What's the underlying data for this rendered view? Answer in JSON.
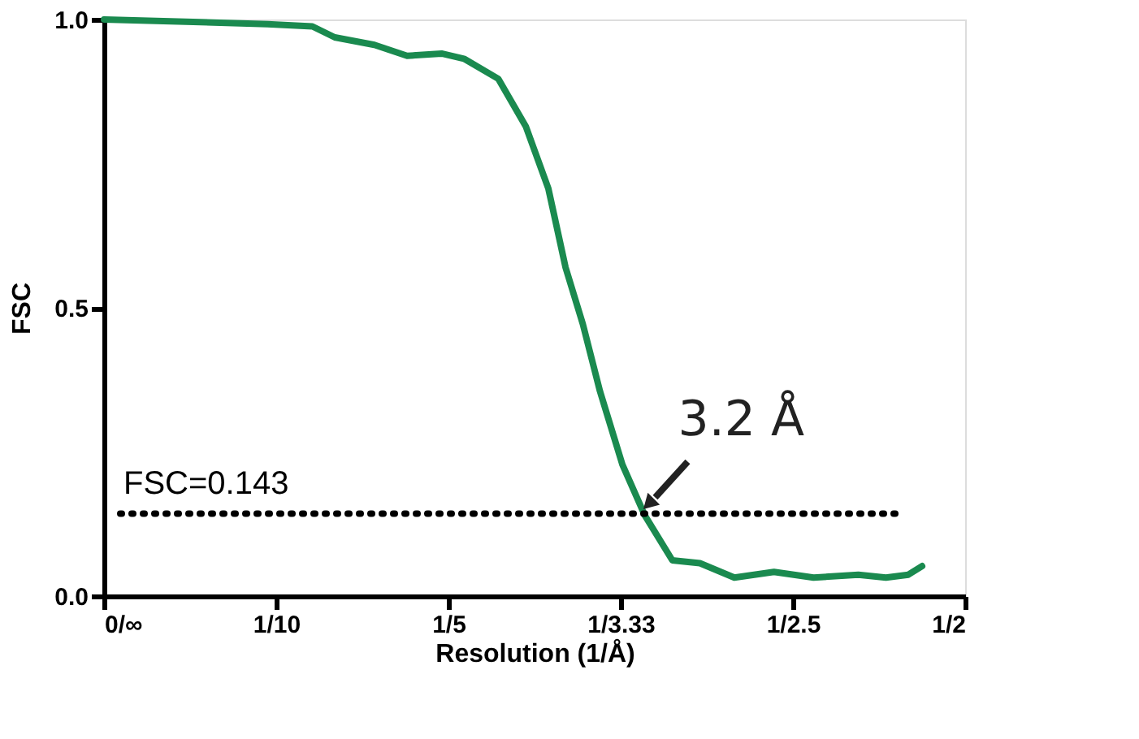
{
  "chart_data": {
    "type": "line",
    "xlabel": "Resolution (1/Å)",
    "ylabel": "FSC",
    "x": [
      0,
      0.095,
      0.121,
      0.134,
      0.157,
      0.176,
      0.196,
      0.209,
      0.229,
      0.245,
      0.258,
      0.268,
      0.278,
      0.288,
      0.301,
      0.314,
      0.33,
      0.346,
      0.366,
      0.389,
      0.412,
      0.438,
      0.454,
      0.467,
      0.475
    ],
    "series": [
      {
        "color": "#1a8a4f",
        "values": [
          1.0,
          0.992,
          0.988,
          0.969,
          0.956,
          0.937,
          0.941,
          0.932,
          0.897,
          0.814,
          0.707,
          0.57,
          0.472,
          0.355,
          0.228,
          0.14,
          0.062,
          0.057,
          0.032,
          0.042,
          0.032,
          0.037,
          0.032,
          0.037,
          0.052
        ]
      }
    ],
    "xlim": [
      0,
      0.5
    ],
    "xticks": [
      {
        "value": 0,
        "label": "0/∞"
      },
      {
        "value": 0.1,
        "label": "1/10"
      },
      {
        "value": 0.2,
        "label": "1/5"
      },
      {
        "value": 0.3,
        "label": "1/3.33"
      },
      {
        "value": 0.4,
        "label": "1/2.5"
      },
      {
        "value": 0.5,
        "label": "1/2"
      }
    ],
    "ylim": [
      0,
      1
    ],
    "yticks": [
      {
        "value": 0,
        "label": "0.0"
      },
      {
        "value": 0.5,
        "label": "0.5"
      },
      {
        "value": 1,
        "label": "1.0"
      }
    ],
    "ref_lines": [
      {
        "axis": "y",
        "value": 0.143,
        "label": "FSC=0.143",
        "color": "#000000",
        "line_style": "dotted"
      }
    ],
    "annotations": [
      {
        "text": "3.2 Å",
        "x": 0.3125,
        "y": 0.143
      }
    ],
    "grid": false,
    "marker": "none",
    "line_style": "solid"
  }
}
